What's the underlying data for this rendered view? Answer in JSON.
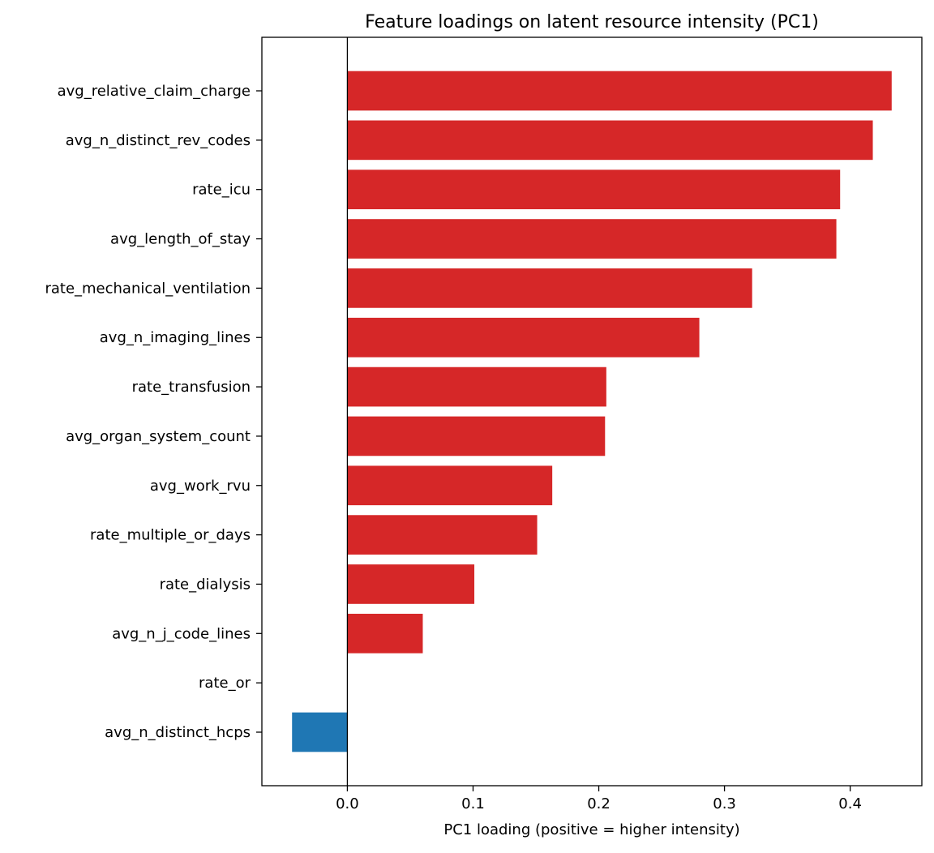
{
  "chart_data": {
    "type": "bar",
    "orientation": "horizontal",
    "title": "Feature loadings on latent resource intensity (PC1)",
    "xlabel": "PC1 loading (positive = higher intensity)",
    "ylabel": "",
    "categories": [
      "avg_relative_claim_charge",
      "avg_n_distinct_rev_codes",
      "rate_icu",
      "avg_length_of_stay",
      "rate_mechanical_ventilation",
      "avg_n_imaging_lines",
      "rate_transfusion",
      "avg_organ_system_count",
      "avg_work_rvu",
      "rate_multiple_or_days",
      "rate_dialysis",
      "avg_n_j_code_lines",
      "rate_or",
      "avg_n_distinct_hcps"
    ],
    "values": [
      0.433,
      0.418,
      0.392,
      0.389,
      0.322,
      0.28,
      0.206,
      0.205,
      0.163,
      0.151,
      0.101,
      0.06,
      0.0,
      -0.044
    ],
    "xlim": [
      -0.068,
      0.457
    ],
    "xticks": [
      0.0,
      0.1,
      0.2,
      0.3,
      0.4
    ],
    "xtick_labels": [
      "0.0",
      "0.1",
      "0.2",
      "0.3",
      "0.4"
    ],
    "grid": false,
    "zero_line": true,
    "colors": {
      "positive": "#d62728",
      "negative": "#1f77b4"
    }
  }
}
